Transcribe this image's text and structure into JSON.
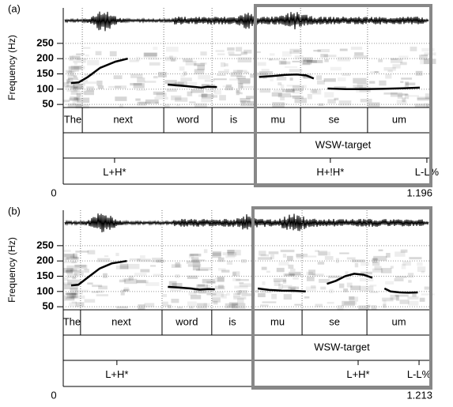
{
  "chart_data": [
    {
      "type": "line",
      "panel_label": "(a)",
      "ylabel": "Frequency (Hz)",
      "color": "#000000",
      "grid": true,
      "ylim": [
        40,
        260
      ],
      "yticks": [
        50,
        100,
        150,
        200,
        250
      ],
      "xlim": [
        0,
        1.196
      ],
      "xticks": [
        0,
        1.196
      ],
      "x": [
        0.025,
        0.05,
        0.08,
        0.12,
        0.17,
        0.21,
        null,
        0.34,
        0.38,
        0.42,
        0.45,
        0.47,
        0.5,
        null,
        0.637,
        0.68,
        0.72,
        0.76,
        0.79,
        0.815,
        null,
        0.86,
        0.92,
        0.98,
        1.04,
        1.1,
        1.16
      ],
      "values": [
        120,
        122,
        140,
        170,
        190,
        200,
        null,
        115,
        112,
        108,
        105,
        108,
        107,
        null,
        140,
        143,
        147,
        148,
        145,
        135,
        null,
        102,
        100,
        100,
        101,
        103,
        105
      ],
      "words": [
        {
          "label": "The",
          "start": 0,
          "end": 0.062
        },
        {
          "label": "next",
          "start": 0.062,
          "end": 0.327
        },
        {
          "label": "word",
          "start": 0.327,
          "end": 0.484
        },
        {
          "label": "is",
          "start": 0.484,
          "end": 0.625
        },
        {
          "label": "mu",
          "start": 0.625,
          "end": 0.772
        },
        {
          "label": "se",
          "start": 0.772,
          "end": 0.99
        },
        {
          "label": "um",
          "start": 0.99,
          "end": 1.196
        }
      ],
      "target": {
        "label": "WSW-target",
        "start": 0.625,
        "end": 1.196
      },
      "tones": [
        {
          "label": "L+H*",
          "time": 0.167
        },
        {
          "label": "H+!H*",
          "time": 0.869
        },
        {
          "label": "L-L%",
          "time": 1.183
        }
      ]
    },
    {
      "type": "line",
      "panel_label": "(b)",
      "ylabel": "Frequency (Hz)",
      "color": "#000000",
      "grid": true,
      "ylim": [
        40,
        260
      ],
      "yticks": [
        50,
        100,
        150,
        200,
        250
      ],
      "xlim": [
        0,
        1.213
      ],
      "xticks": [
        0,
        1.213
      ],
      "x": [
        0.026,
        0.05,
        0.08,
        0.12,
        0.16,
        0.21,
        null,
        0.345,
        0.38,
        0.42,
        0.45,
        0.48,
        0.5,
        null,
        0.642,
        0.68,
        0.72,
        0.76,
        0.8,
        null,
        0.87,
        0.9,
        0.93,
        0.96,
        0.99,
        1.02,
        null,
        1.06,
        1.08,
        1.11,
        1.14,
        1.17
      ],
      "values": [
        120,
        122,
        145,
        175,
        192,
        200,
        null,
        115,
        113,
        110,
        106,
        108,
        107,
        null,
        110,
        105,
        103,
        102,
        100,
        null,
        125,
        135,
        150,
        158,
        155,
        145,
        null,
        110,
        100,
        97,
        96,
        97
      ],
      "words": [
        {
          "label": "The",
          "start": 0,
          "end": 0.057
        },
        {
          "label": "next",
          "start": 0.057,
          "end": 0.326
        },
        {
          "label": "word",
          "start": 0.326,
          "end": 0.49
        },
        {
          "label": "is",
          "start": 0.49,
          "end": 0.626
        },
        {
          "label": "mu",
          "start": 0.626,
          "end": 0.788
        },
        {
          "label": "se",
          "start": 0.788,
          "end": 1.002
        },
        {
          "label": "um",
          "start": 1.002,
          "end": 1.213
        }
      ],
      "target": {
        "label": "WSW-target",
        "start": 0.626,
        "end": 1.213
      },
      "tones": [
        {
          "label": "L+H*",
          "time": 0.177
        },
        {
          "label": "L+H*",
          "time": 0.973
        },
        {
          "label": "L-L%",
          "time": 1.174
        }
      ]
    }
  ]
}
